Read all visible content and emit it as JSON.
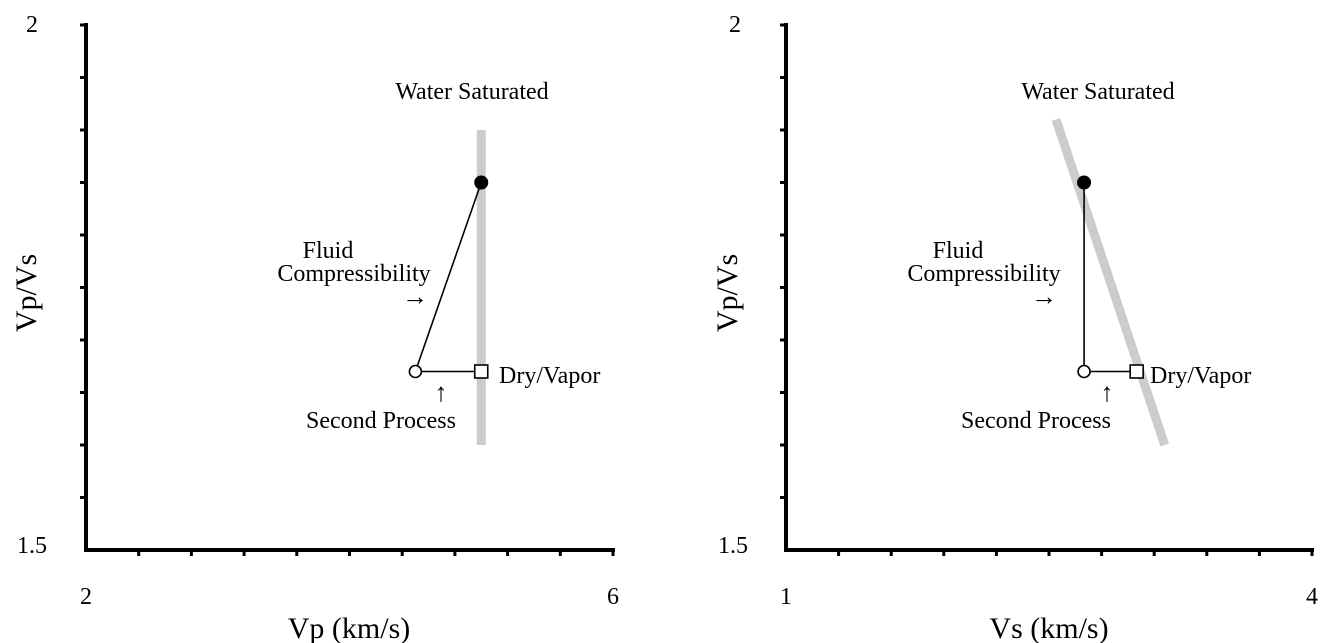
{
  "chart_data": [
    {
      "type": "scatter",
      "id": "left",
      "xlabel": "Vp (km/s)",
      "ylabel": "Vp/Vs",
      "xlim": [
        2,
        6
      ],
      "ylim": [
        1.5,
        2
      ],
      "x_tick_labels": [
        "2",
        "6"
      ],
      "y_tick_labels": [
        "1.5",
        "2"
      ],
      "x_minor_ticks": 10,
      "y_minor_ticks": 10,
      "trend_line": {
        "label": "Water Saturated",
        "points": [
          [
            5.0,
            1.9
          ],
          [
            5.0,
            1.6
          ]
        ],
        "color": "#cccccc"
      },
      "points": {
        "water_saturated": {
          "x": 5.0,
          "y": 1.85,
          "marker": "filled-circle"
        },
        "second_process": {
          "x": 4.5,
          "y": 1.67,
          "marker": "open-circle"
        },
        "dry_vapor": {
          "x": 5.0,
          "y": 1.67,
          "marker": "open-square",
          "label": "Dry/Vapor"
        }
      },
      "annotations": {
        "water_saturated": "Water Saturated",
        "fluid_1": "Fluid",
        "fluid_2": "Compressibility",
        "second_process": "Second Process",
        "dry_vapor": "Dry/Vapor",
        "arrow_right": "→",
        "arrow_up": "↑"
      }
    },
    {
      "type": "scatter",
      "id": "right",
      "xlabel": "Vs (km/s)",
      "ylabel": "Vp/Vs",
      "xlim": [
        1,
        4
      ],
      "ylim": [
        1.5,
        2
      ],
      "x_tick_labels": [
        "1",
        "4"
      ],
      "y_tick_labels": [
        "1.5",
        "2"
      ],
      "x_minor_ticks": 10,
      "y_minor_ticks": 10,
      "trend_line": {
        "label": "Water Saturated",
        "points": [
          [
            2.54,
            1.91
          ],
          [
            3.16,
            1.6
          ]
        ],
        "color": "#cccccc"
      },
      "points": {
        "water_saturated": {
          "x": 2.7,
          "y": 1.85,
          "marker": "filled-circle"
        },
        "second_process": {
          "x": 2.7,
          "y": 1.67,
          "marker": "open-circle"
        },
        "dry_vapor": {
          "x": 3.0,
          "y": 1.67,
          "marker": "open-square",
          "label": "Dry/Vapor"
        }
      },
      "annotations": {
        "water_saturated": "Water Saturated",
        "fluid_1": "Fluid",
        "fluid_2": "Compressibility",
        "second_process": "Second Process",
        "dry_vapor": "Dry/Vapor",
        "arrow_right": "→",
        "arrow_up": "↑"
      }
    }
  ]
}
